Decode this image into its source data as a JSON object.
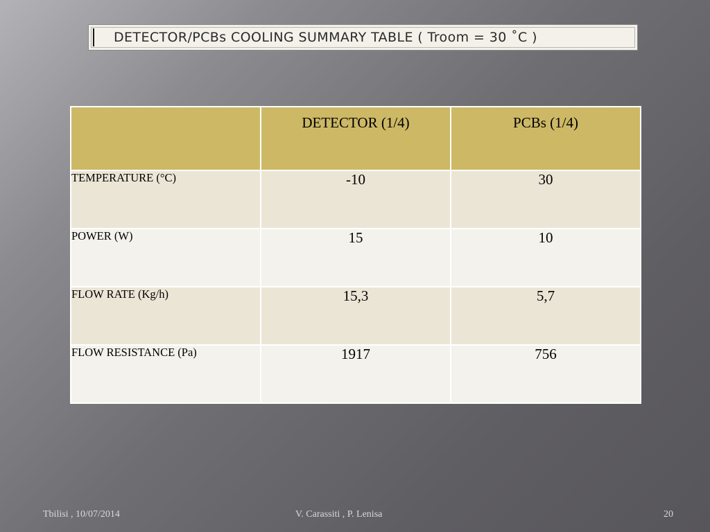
{
  "title": "DETECTOR/PCBs COOLING SUMMARY TABLE ( Troom = 30 ˚C )",
  "table": {
    "headers": [
      "",
      "DETECTOR (1/4)",
      "PCBs (1/4)"
    ],
    "rows": [
      {
        "label": "TEMPERATURE (°C)",
        "detector": "-10",
        "pcbs": "30"
      },
      {
        "label": "POWER (W)",
        "detector": "15",
        "pcbs": "10"
      },
      {
        "label": "FLOW RATE (Kg/h)",
        "detector": "15,3",
        "pcbs": "5,7"
      },
      {
        "label": "FLOW RESISTANCE (Pa)",
        "detector": "1917",
        "pcbs": "756"
      }
    ]
  },
  "footer": {
    "location_date": "Tbilisi , 10/07/2014",
    "authors": "V. Carassiti ,  P. Lenisa",
    "page_number": "20"
  },
  "colors": {
    "header_fill": "#cdb865",
    "row_odd_fill": "#ebe5d6",
    "row_even_fill": "#f4f2ec",
    "title_box_fill": "#f3f1ea"
  }
}
